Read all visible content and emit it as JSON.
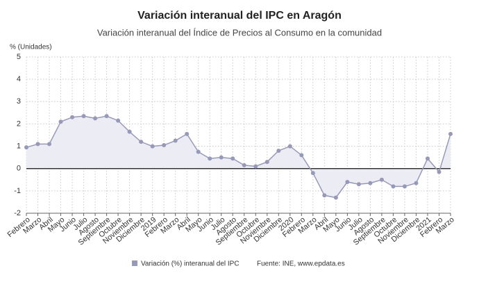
{
  "chart_data": {
    "type": "line",
    "title": "Variación interanual del IPC en Aragón",
    "subtitle": "Variación interanual del Índice de Precios al Consumo en la comunidad",
    "y_label": "% (Unidades)",
    "source": "Fuente: INE, www.epdata.es",
    "categories": [
      "Febrero",
      "Marzo",
      "Abril",
      "Mayo",
      "Junio",
      "Julio",
      "Agosto",
      "Septiembre",
      "Octubre",
      "Noviembre",
      "Diciembre",
      "2019",
      "Febrero",
      "Marzo",
      "Abril",
      "Mayo",
      "Junio",
      "Julio",
      "Agosto",
      "Septiembre",
      "Octubre",
      "Noviembre",
      "Diciembre",
      "2020",
      "Febrero",
      "Marzo",
      "Abril",
      "Mayo",
      "Junio",
      "Julio",
      "Agosto",
      "Septiembre",
      "Octubre",
      "Noviembre",
      "Diciembre",
      "2021",
      "Febrero",
      "Marzo"
    ],
    "series": [
      {
        "name": "Variación (%) interanual del IPC",
        "color": "#9799b8",
        "values": [
          0.95,
          1.1,
          1.1,
          2.1,
          2.3,
          2.35,
          2.25,
          2.35,
          2.15,
          1.65,
          1.2,
          1.0,
          1.05,
          1.25,
          1.55,
          0.75,
          0.45,
          0.5,
          0.45,
          0.15,
          0.1,
          0.3,
          0.8,
          1.0,
          0.6,
          -0.2,
          -1.2,
          -1.3,
          -0.6,
          -0.7,
          -0.65,
          -0.5,
          -0.8,
          -0.8,
          -0.65,
          0.45,
          -0.15,
          1.55
        ]
      }
    ],
    "ylim": [
      -2,
      5
    ],
    "yticks": [
      -2,
      -1,
      0,
      1,
      2,
      3,
      4,
      5
    ],
    "grid": true,
    "area_fill": "#ececf4"
  }
}
